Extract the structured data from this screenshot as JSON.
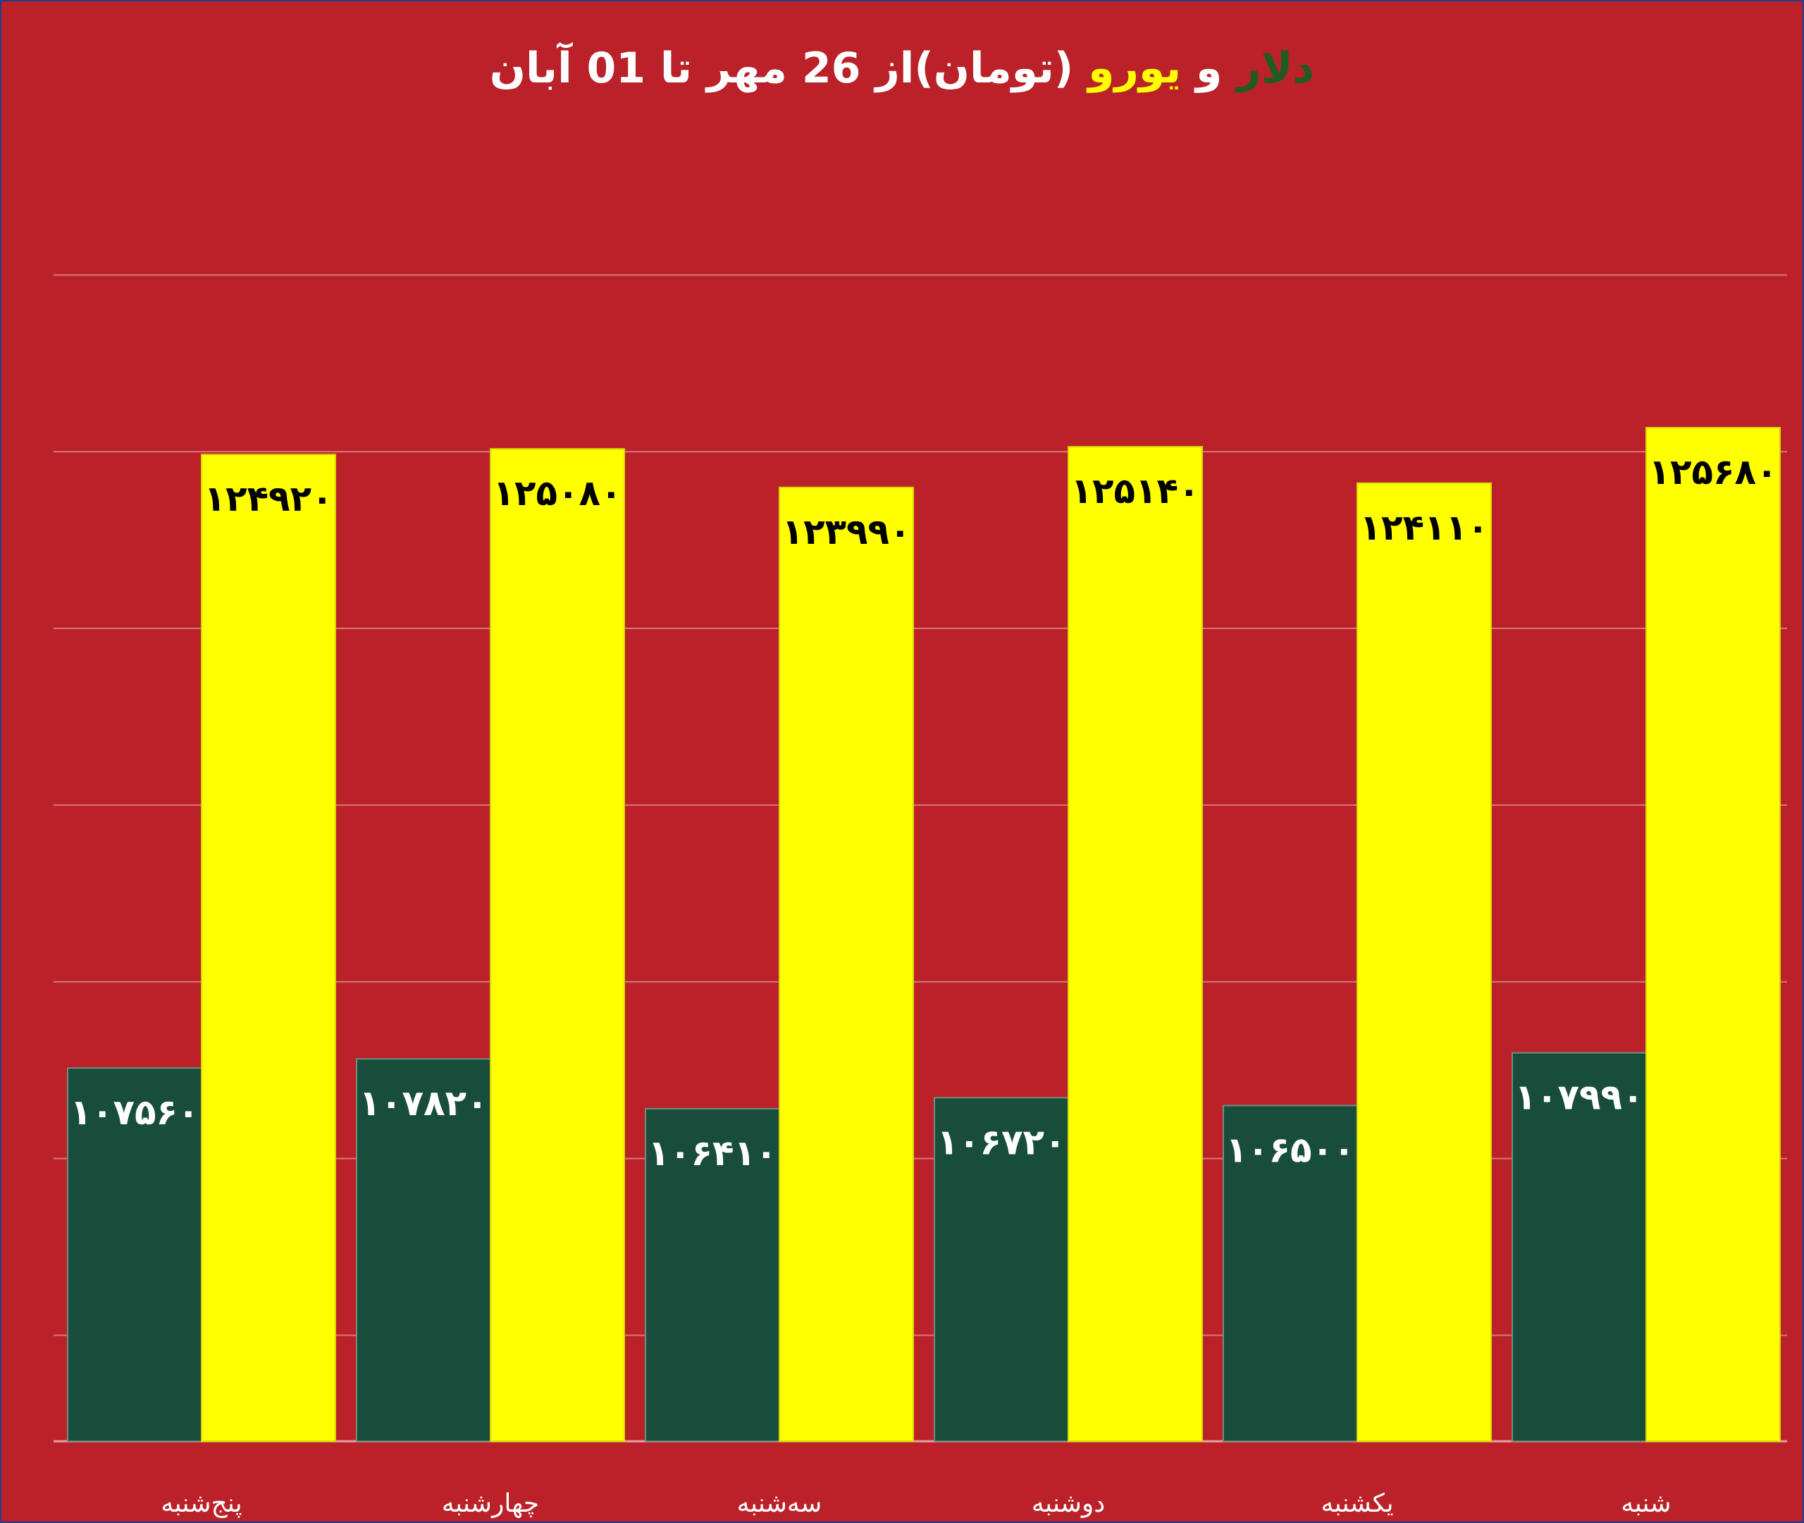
{
  "title": {
    "dollar": "دلار",
    "and": "و",
    "euro": "یورو",
    "rest": "(تومان)از 26 مهر تا 01 آبان"
  },
  "colors": {
    "background": "#bb2129",
    "dollar_bar": "#174d3a",
    "euro_bar": "#ffff00",
    "dollar_title": "#1f5b22",
    "euro_title": "#ffff00",
    "gridline": "#d9777b",
    "dollar_label": "#ffffff",
    "euro_label": "#000000"
  },
  "chart_data": {
    "type": "bar",
    "categories": [
      "پنج‌شنبه",
      "چهارشنبه",
      "سه‌شنبه",
      "دوشنبه",
      "یکشنبه",
      "شنبه"
    ],
    "series": [
      {
        "name": "دلار",
        "values": [
          107560,
          107820,
          106410,
          106720,
          106500,
          107990
        ],
        "labels": [
          "۱۰۷۵۶۰",
          "۱۰۷۸۲۰",
          "۱۰۶۴۱۰",
          "۱۰۶۷۲۰",
          "۱۰۶۵۰۰",
          "۱۰۷۹۹۰"
        ]
      },
      {
        "name": "یورو",
        "values": [
          124920,
          125080,
          123990,
          125140,
          124110,
          125680
        ],
        "labels": [
          "۱۲۴۹۲۰",
          "۱۲۵۰۸۰",
          "۱۲۳۹۹۰",
          "۱۲۵۱۴۰",
          "۱۲۴۱۱۰",
          "۱۲۵۶۸۰"
        ]
      }
    ],
    "ylim": [
      97000,
      132000
    ],
    "grid": true,
    "legend": "none"
  }
}
